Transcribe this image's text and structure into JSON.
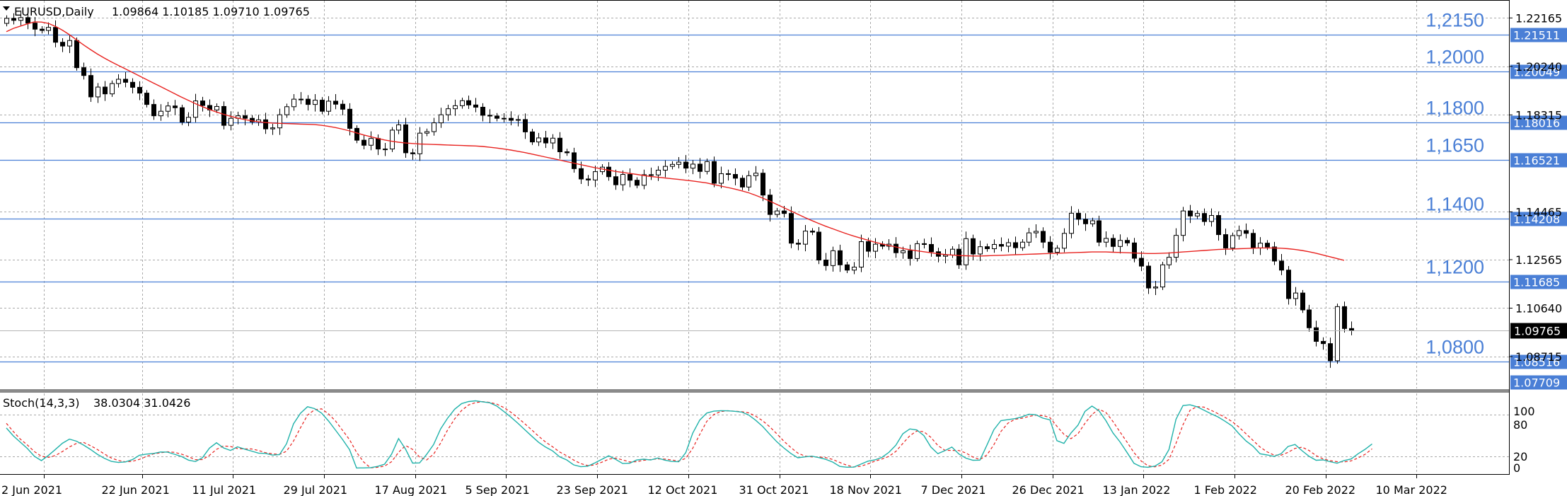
{
  "header": {
    "symbol": "EURUSD,Daily",
    "ohlc": "1.09864 1.10185 1.09710 1.09765"
  },
  "indicator": {
    "name": "Stoch(14,3,3)",
    "values": "38.0304 31.0426",
    "scale_top": "100",
    "scale_80": "80",
    "scale_20": "20",
    "scale_0": "0"
  },
  "colors": {
    "candle": "#000000",
    "ma": "#e8221f",
    "level_line": "#4a7fd6",
    "level_text": "#4a7fd6",
    "stoch_main": "#20b2aa",
    "stoch_signal": "#e8221f",
    "grid": "#a9a9a9"
  },
  "chart_data": {
    "type": "candlestick",
    "ylim": [
      1.0745,
      1.2285
    ],
    "price_ticks": [
      "1.22165",
      "1.20240",
      "1.18315",
      "1.14465",
      "1.12565",
      "1.10640",
      "1.08715"
    ],
    "price_tick_values": [
      1.22165,
      1.2024,
      1.18315,
      1.14465,
      1.12565,
      1.1064,
      1.08715
    ],
    "current_price": "1.09765",
    "current_price_value": 1.09765,
    "levels": [
      {
        "label": "1,2150",
        "tag": "1.21511",
        "value": 1.21511
      },
      {
        "label": "1,2000",
        "tag": "1.20049",
        "value": 1.20049
      },
      {
        "label": "1,1800",
        "tag": "1.18016",
        "value": 1.18016
      },
      {
        "label": "1,1650",
        "tag": "1.16521",
        "value": 1.16521
      },
      {
        "label": "1,1400",
        "tag": "1.14208",
        "value": 1.14208
      },
      {
        "label": "1,1200",
        "tag": "1.11685",
        "value": 1.11685
      },
      {
        "label": "1,0800",
        "tag": "1.08516",
        "value": 1.08516
      },
      {
        "label": "",
        "tag": "1.07709",
        "value": 1.07709
      }
    ],
    "date_labels": [
      "2 Jun 2021",
      "22 Jun 2021",
      "11 Jul 2021",
      "29 Jul 2021",
      "17 Aug 2021",
      "5 Sep 2021",
      "23 Sep 2021",
      "12 Oct 2021",
      "31 Oct 2021",
      "18 Nov 2021",
      "7 Dec 2021",
      "26 Dec 2021",
      "13 Jan 2022",
      "1 Feb 2022",
      "20 Feb 2022",
      "10 Mar 2022"
    ],
    "date_label_bar_index": [
      0,
      14,
      27,
      40,
      53,
      66,
      79,
      92,
      105,
      118,
      131,
      144,
      157,
      170,
      183,
      196
    ],
    "closes": [
      1.2215,
      1.2207,
      1.2218,
      1.2196,
      1.2172,
      1.2167,
      1.2179,
      1.212,
      1.2105,
      1.2127,
      1.2019,
      1.1988,
      1.1903,
      1.1942,
      1.1915,
      1.1956,
      1.1973,
      1.1961,
      1.1941,
      1.1918,
      1.1873,
      1.1828,
      1.1846,
      1.1867,
      1.186,
      1.1803,
      1.1822,
      1.1887,
      1.1869,
      1.1851,
      1.1865,
      1.179,
      1.1818,
      1.1828,
      1.1818,
      1.1804,
      1.1812,
      1.1776,
      1.178,
      1.1832,
      1.1864,
      1.1894,
      1.1894,
      1.1873,
      1.189,
      1.1846,
      1.1886,
      1.1874,
      1.1854,
      1.1778,
      1.1731,
      1.1711,
      1.1738,
      1.1696,
      1.1696,
      1.1771,
      1.1792,
      1.1681,
      1.1677,
      1.1759,
      1.1765,
      1.18,
      1.1832,
      1.1856,
      1.1868,
      1.1888,
      1.1871,
      1.1862,
      1.183,
      1.1827,
      1.1818,
      1.1818,
      1.181,
      1.1813,
      1.1764,
      1.1724,
      1.174,
      1.172,
      1.1739,
      1.1685,
      1.1681,
      1.1618,
      1.1577,
      1.1573,
      1.1606,
      1.1624,
      1.1586,
      1.1554,
      1.1595,
      1.1572,
      1.1552,
      1.1594,
      1.1593,
      1.1612,
      1.1627,
      1.1635,
      1.1644,
      1.162,
      1.1636,
      1.1607,
      1.1646,
      1.156,
      1.1598,
      1.1595,
      1.158,
      1.1545,
      1.159,
      1.16,
      1.1513,
      1.1436,
      1.145,
      1.144,
      1.1322,
      1.1318,
      1.137,
      1.1366,
      1.1255,
      1.1233,
      1.1292,
      1.1236,
      1.1215,
      1.1227,
      1.1328,
      1.129,
      1.1318,
      1.131,
      1.1318,
      1.1284,
      1.1292,
      1.1261,
      1.132,
      1.1317,
      1.1288,
      1.127,
      1.1275,
      1.1298,
      1.1236,
      1.134,
      1.1279,
      1.1308,
      1.13,
      1.1317,
      1.131,
      1.1324,
      1.1304,
      1.1326,
      1.1363,
      1.1369,
      1.1326,
      1.1286,
      1.1302,
      1.1361,
      1.1441,
      1.1417,
      1.1399,
      1.1411,
      1.1326,
      1.1341,
      1.1309,
      1.1333,
      1.1323,
      1.1262,
      1.1231,
      1.1144,
      1.1148,
      1.1236,
      1.1266,
      1.1353,
      1.145,
      1.143,
      1.144,
      1.1408,
      1.1432,
      1.1356,
      1.1303,
      1.1352,
      1.1372,
      1.1361,
      1.1303,
      1.1322,
      1.1307,
      1.1251,
      1.1215,
      1.1102,
      1.1124,
      1.1057,
      1.0986,
      1.0932,
      1.0923,
      1.0855,
      1.107,
      1.0983,
      1.0976
    ],
    "ma_values": [
      1.2162,
      1.2175,
      1.2184,
      1.2193,
      1.2201,
      1.22,
      1.2195,
      1.2183,
      1.2168,
      1.215,
      1.213,
      1.211,
      1.2091,
      1.2073,
      1.2057,
      1.2042,
      1.2028,
      1.2014,
      1.2,
      1.1986,
      1.1972,
      1.1958,
      1.1944,
      1.193,
      1.1916,
      1.1902,
      1.1889,
      1.1876,
      1.1864,
      1.1853,
      1.1843,
      1.1834,
      1.1826,
      1.1819,
      1.1813,
      1.1808,
      1.1804,
      1.1801,
      1.1799,
      1.1798,
      1.1797,
      1.1796,
      1.1795,
      1.1794,
      1.1793,
      1.179,
      1.1786,
      1.1781,
      1.1775,
      1.1768,
      1.176,
      1.1752,
      1.1745,
      1.1738,
      1.1732,
      1.1727,
      1.1723,
      1.172,
      1.1718,
      1.1716,
      1.1715,
      1.1714,
      1.1713,
      1.1712,
      1.1711,
      1.171,
      1.1709,
      1.1708,
      1.1706,
      1.1703,
      1.17,
      1.1696,
      1.1692,
      1.1687,
      1.1682,
      1.1676,
      1.167,
      1.1664,
      1.1658,
      1.1652,
      1.1646,
      1.164,
      1.1634,
      1.1628,
      1.1622,
      1.1617,
      1.1612,
      1.1607,
      1.1603,
      1.1599,
      1.1595,
      1.1591,
      1.1587,
      1.1584,
      1.1581,
      1.1578,
      1.1575,
      1.1572,
      1.1569,
      1.1565,
      1.1561,
      1.1555,
      1.1549,
      1.1543,
      1.1537,
      1.153,
      1.1522,
      1.1512,
      1.1501,
      1.1489,
      1.1476,
      1.1463,
      1.145,
      1.1437,
      1.1424,
      1.1412,
      1.14,
      1.1389,
      1.1379,
      1.1369,
      1.1359,
      1.135,
      1.1342,
      1.1334,
      1.1326,
      1.1319,
      1.1313,
      1.1307,
      1.1301,
      1.1296,
      1.1292,
      1.1288,
      1.1284,
      1.128,
      1.1277,
      1.1275,
      1.1273,
      1.1272,
      1.1271,
      1.1271,
      1.1272,
      1.1273,
      1.1274,
      1.1275,
      1.1276,
      1.1277,
      1.1278,
      1.1279,
      1.128,
      1.1281,
      1.1282,
      1.1283,
      1.1284,
      1.1285,
      1.1286,
      1.1287,
      1.1287,
      1.1287,
      1.1286,
      1.1285,
      1.1284,
      1.1283,
      1.1282,
      1.1281,
      1.1281,
      1.1282,
      1.1283,
      1.1285,
      1.1287,
      1.1289,
      1.1291,
      1.1293,
      1.1295,
      1.1297,
      1.1298,
      1.1299,
      1.13,
      1.1301,
      1.1302,
      1.1303,
      1.1303,
      1.1303,
      1.1302,
      1.13,
      1.1297,
      1.1293,
      1.1288,
      1.1282,
      1.1275,
      1.1268,
      1.1261,
      1.1254
    ],
    "stoch_main": [
      60.7,
      49.4,
      40.4,
      31.4,
      20.4,
      14.1,
      21.5,
      30.1,
      38.9,
      44.8,
      41.9,
      36.5,
      30.2,
      23.1,
      17.4,
      13.0,
      11.5,
      12.3,
      15.6,
      21.8,
      23.4,
      24.3,
      26.5,
      26.4,
      23.2,
      20.1,
      14.8,
      12.8,
      18.4,
      32.0,
      39.6,
      32.3,
      28.7,
      33.8,
      30.6,
      27.8,
      24.8,
      24.4,
      22.0,
      22.7,
      38.2,
      66.7,
      81.8,
      91.1,
      88.4,
      82.0,
      70.7,
      57.6,
      44.3,
      29.8,
      3.6,
      3.7,
      4.1,
      5.9,
      9.1,
      23.3,
      45.7,
      30.4,
      10.6,
      10.9,
      22.9,
      37.1,
      59.4,
      74.7,
      87.5,
      95.6,
      98.5,
      99.5,
      98.1,
      96.8,
      92.2,
      84.5,
      76.6,
      67.8,
      58.5,
      49.2,
      40.2,
      33.4,
      28.0,
      19.6,
      15.2,
      8.1,
      5.5,
      6.2,
      10.7,
      16.0,
      21.0,
      15.9,
      10.0,
      10.4,
      15.1,
      16.2,
      15.1,
      17.9,
      14.8,
      12.9,
      12.6,
      25.5,
      53.3,
      72.0,
      82.0,
      84.7,
      85.4,
      85.3,
      84.5,
      83.4,
      79.2,
      71.6,
      62.7,
      51.7,
      41.1,
      32.3,
      24.4,
      18.2,
      19.5,
      20.5,
      18.5,
      16.0,
      12.0,
      5.9,
      4.7,
      4.8,
      9.1,
      13.3,
      15.2,
      18.7,
      25.9,
      36.2,
      52.5,
      59.4,
      57.9,
      49.9,
      33.5,
      24.0,
      28.4,
      33.5,
      23.6,
      17.7,
      14.6,
      14.8,
      36.2,
      58.4,
      71.2,
      72.6,
      74.0,
      76.6,
      80.4,
      79.6,
      74.7,
      72.4,
      42.6,
      38.7,
      53.5,
      64.6,
      84.4,
      92.0,
      85.4,
      71.1,
      53.7,
      40.9,
      26.0,
      10.3,
      5.5,
      4.6,
      6.4,
      12.5,
      30.1,
      73.1,
      92.7,
      93.8,
      91.0,
      86.1,
      81.0,
      76.5,
      70.4,
      63.7,
      52.4,
      42.2,
      34.6,
      23.9,
      22.2,
      20.2,
      23.9,
      34.3,
      37.2,
      28.3,
      20.3,
      14.6,
      15.2,
      12.6,
      10.4,
      14.2,
      16.5,
      23.9,
      30.3,
      38.0
    ],
    "stoch_signal": [
      67.4,
      55.6,
      44.7,
      36.5,
      27.1,
      20.3,
      18.8,
      21.4,
      27.1,
      33.6,
      38.7,
      40.3,
      35.6,
      30.0,
      23.6,
      17.8,
      14.3,
      12.4,
      13.1,
      16.0,
      20.0,
      23.7,
      25.3,
      26.8,
      26.0,
      23.4,
      19.8,
      15.5,
      15.7,
      21.8,
      30.2,
      35.1,
      34.3,
      31.3,
      30.8,
      30.8,
      28.7,
      25.5,
      23.8,
      23.0,
      27.6,
      42.1,
      61.2,
      79.1,
      86.8,
      88.1,
      80.8,
      70.7,
      57.4,
      44.0,
      26.1,
      12.3,
      3.8,
      4.6,
      6.3,
      12.6,
      26.1,
      35.7,
      30.2,
      19.2,
      15.0,
      23.3,
      39.2,
      57.9,
      73.6,
      85.8,
      93.6,
      97.0,
      98.4,
      97.3,
      94.8,
      90.1,
      83.4,
      75.6,
      67.0,
      58.1,
      48.9,
      40.6,
      33.8,
      26.5,
      21.1,
      14.9,
      10.0,
      7.1,
      8.0,
      11.8,
      16.2,
      17.8,
      15.2,
      12.2,
      12.6,
      14.6,
      15.7,
      16.6,
      16.4,
      15.1,
      13.5,
      17.4,
      31.7,
      51.5,
      70.1,
      79.9,
      84.2,
      85.4,
      84.7,
      84.0,
      82.3,
      77.5,
      70.9,
      62.4,
      52.5,
      42.0,
      32.9,
      25.0,
      20.7,
      19.4,
      19.4,
      18.4,
      15.8,
      11.5,
      7.6,
      5.1,
      6.2,
      9.4,
      13.3,
      16.4,
      20.2,
      27.3,
      38.7,
      49.7,
      56.5,
      55.4,
      47.4,
      35.8,
      28.9,
      28.7,
      28.6,
      25.1,
      19.2,
      15.7,
      22.2,
      36.9,
      55.7,
      67.6,
      73.1,
      74.6,
      77.3,
      79.0,
      78.4,
      75.7,
      63.1,
      51.7,
      45.5,
      52.4,
      67.4,
      80.1,
      87.5,
      82.8,
      70.0,
      55.2,
      40.7,
      25.7,
      13.8,
      6.8,
      5.3,
      7.8,
      16.0,
      38.8,
      65.3,
      86.1,
      91.2,
      90.5,
      86.1,
      81.2,
      75.9,
      70.0,
      61.9,
      52.4,
      43.0,
      33.5,
      26.8,
      22.0,
      21.8,
      26.0,
      31.6,
      33.3,
      28.6,
      21.3,
      16.6,
      14.0,
      12.6,
      12.3,
      13.7,
      18.0,
      23.1,
      31.0
    ]
  }
}
